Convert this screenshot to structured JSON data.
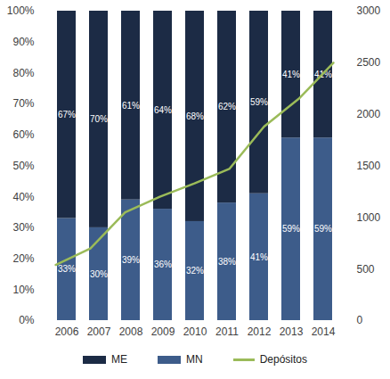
{
  "chart_data": {
    "type": "bar",
    "stacked": true,
    "data_labels": true,
    "legend": "bottom",
    "categories": [
      "2006",
      "2007",
      "2008",
      "2009",
      "2010",
      "2011",
      "2012",
      "2013",
      "2014"
    ],
    "series": [
      {
        "name": "ME",
        "color": "#1c2b45",
        "values": [
          67,
          70,
          61,
          64,
          68,
          62,
          59,
          41,
          41
        ],
        "value_labels": [
          "67%",
          "70%",
          "61%",
          "64%",
          "68%",
          "62%",
          "59%",
          "41%",
          "41%"
        ]
      },
      {
        "name": "MN",
        "color": "#3d5c8a",
        "values": [
          33,
          30,
          39,
          36,
          32,
          38,
          41,
          59,
          59
        ],
        "value_labels": [
          "33%",
          "30%",
          "39%",
          "36%",
          "32%",
          "38%",
          "41%",
          "59%",
          "59%"
        ]
      },
      {
        "name": "Depósitos",
        "type": "line",
        "axis": "y2",
        "color": "#9bbb59",
        "values": [
          540,
          700,
          1050,
          1200,
          1330,
          1470,
          1880,
          2150,
          2500
        ]
      }
    ],
    "ylim": [
      0,
      100
    ],
    "yticks": [
      {
        "value": 0,
        "label": "0%"
      },
      {
        "value": 10,
        "label": "10%"
      },
      {
        "value": 20,
        "label": "20%"
      },
      {
        "value": 30,
        "label": "30%"
      },
      {
        "value": 40,
        "label": "40%"
      },
      {
        "value": 50,
        "label": "50%"
      },
      {
        "value": 60,
        "label": "60%"
      },
      {
        "value": 70,
        "label": "70%"
      },
      {
        "value": 80,
        "label": "80%"
      },
      {
        "value": 90,
        "label": "90%"
      },
      {
        "value": 100,
        "label": "100%"
      }
    ],
    "y2lim": [
      0,
      3000
    ],
    "y2ticks": [
      0,
      500,
      1000,
      1500,
      2000,
      2500,
      3000
    ]
  }
}
